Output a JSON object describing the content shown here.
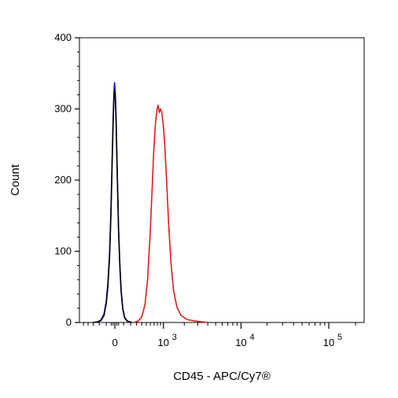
{
  "chart_data": {
    "type": "line",
    "title": "",
    "xlabel": "CD45 - APC/Cy7®",
    "ylabel": "Count",
    "xscale": "biexponential",
    "ylim": [
      0,
      400
    ],
    "yticks": [
      0,
      100,
      200,
      300,
      400
    ],
    "xticks": [
      {
        "base": "0",
        "exp": "",
        "value": 0
      },
      {
        "base": "10",
        "exp": "3",
        "value": 1000
      },
      {
        "base": "10",
        "exp": "4",
        "value": 10000
      },
      {
        "base": "10",
        "exp": "5",
        "value": 100000
      }
    ],
    "grid": false,
    "series": [
      {
        "name": "",
        "color": "#1a1aff",
        "points": [
          [
            -300,
            0
          ],
          [
            -220,
            1
          ],
          [
            -170,
            4
          ],
          [
            -130,
            12
          ],
          [
            -100,
            30
          ],
          [
            -80,
            55
          ],
          [
            -60,
            95
          ],
          [
            -45,
            150
          ],
          [
            -35,
            200
          ],
          [
            -25,
            255
          ],
          [
            -15,
            305
          ],
          [
            -8,
            330
          ],
          [
            -3,
            337
          ],
          [
            5,
            320
          ],
          [
            12,
            290
          ],
          [
            20,
            240
          ],
          [
            30,
            185
          ],
          [
            40,
            130
          ],
          [
            55,
            80
          ],
          [
            70,
            45
          ],
          [
            90,
            20
          ],
          [
            115,
            7
          ],
          [
            150,
            2
          ],
          [
            220,
            0
          ]
        ]
      },
      {
        "name": "",
        "color": "#000000",
        "points": [
          [
            -300,
            0
          ],
          [
            -220,
            1
          ],
          [
            -170,
            3
          ],
          [
            -130,
            10
          ],
          [
            -100,
            27
          ],
          [
            -80,
            50
          ],
          [
            -60,
            90
          ],
          [
            -45,
            145
          ],
          [
            -35,
            195
          ],
          [
            -25,
            250
          ],
          [
            -15,
            298
          ],
          [
            -8,
            322
          ],
          [
            -3,
            328
          ],
          [
            5,
            312
          ],
          [
            12,
            283
          ],
          [
            20,
            235
          ],
          [
            30,
            180
          ],
          [
            40,
            127
          ],
          [
            55,
            78
          ],
          [
            70,
            43
          ],
          [
            90,
            19
          ],
          [
            115,
            6
          ],
          [
            150,
            2
          ],
          [
            220,
            0
          ]
        ]
      },
      {
        "name": "",
        "color": "#e31a1c",
        "points": [
          [
            250,
            0
          ],
          [
            330,
            2
          ],
          [
            400,
            8
          ],
          [
            470,
            25
          ],
          [
            530,
            60
          ],
          [
            590,
            120
          ],
          [
            640,
            180
          ],
          [
            690,
            240
          ],
          [
            740,
            280
          ],
          [
            790,
            300
          ],
          [
            820,
            305
          ],
          [
            860,
            295
          ],
          [
            900,
            300
          ],
          [
            940,
            296
          ],
          [
            990,
            280
          ],
          [
            1050,
            250
          ],
          [
            1120,
            200
          ],
          [
            1200,
            140
          ],
          [
            1300,
            85
          ],
          [
            1420,
            45
          ],
          [
            1580,
            22
          ],
          [
            1800,
            10
          ],
          [
            2200,
            4
          ],
          [
            2800,
            2
          ],
          [
            4000,
            0
          ]
        ]
      }
    ]
  }
}
